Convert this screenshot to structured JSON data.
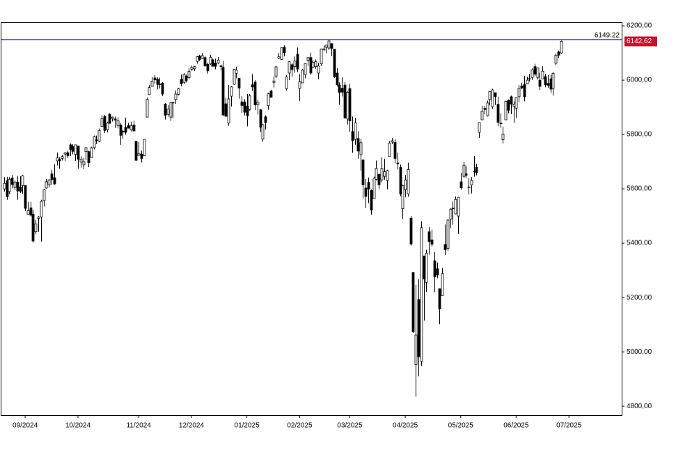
{
  "chart_data": {
    "type": "candlestick",
    "ohlc": [
      [
        5600,
        5643,
        5590,
        5620
      ],
      [
        5630,
        5644,
        5560,
        5571
      ],
      [
        5590,
        5643,
        5580,
        5635
      ],
      [
        5640,
        5651,
        5602,
        5616
      ],
      [
        5605,
        5631,
        5595,
        5625
      ],
      [
        5625,
        5646,
        5560,
        5592
      ],
      [
        5607,
        5646,
        5585,
        5591
      ],
      [
        5612,
        5651,
        5582,
        5648
      ],
      [
        5612,
        5613,
        5518,
        5528
      ],
      [
        5506,
        5552,
        5503,
        5520
      ],
      [
        5530,
        5552,
        5498,
        5503
      ],
      [
        5507,
        5522,
        5402,
        5408
      ],
      [
        5442,
        5485,
        5434,
        5471
      ],
      [
        5491,
        5500,
        5442,
        5496
      ],
      [
        5496,
        5560,
        5406,
        5554
      ],
      [
        5557,
        5600,
        5535,
        5596
      ],
      [
        5603,
        5636,
        5601,
        5626
      ],
      [
        5615,
        5636,
        5604,
        5633
      ],
      [
        5655,
        5670,
        5614,
        5634
      ],
      [
        5641,
        5690,
        5615,
        5618
      ],
      [
        5703,
        5733,
        5686,
        5714
      ],
      [
        5709,
        5716,
        5674,
        5703
      ],
      [
        5712,
        5725,
        5704,
        5719
      ],
      [
        5728,
        5735,
        5703,
        5732
      ],
      [
        5733,
        5741,
        5713,
        5722
      ],
      [
        5762,
        5767,
        5721,
        5745
      ],
      [
        5756,
        5764,
        5727,
        5738
      ],
      [
        5727,
        5763,
        5703,
        5762
      ],
      [
        5758,
        5758,
        5674,
        5709
      ],
      [
        5698,
        5720,
        5678,
        5709
      ],
      [
        5688,
        5714,
        5673,
        5700
      ],
      [
        5737,
        5754,
        5705,
        5751
      ],
      [
        5737,
        5740,
        5680,
        5696
      ],
      [
        5715,
        5755,
        5715,
        5751
      ],
      [
        5752,
        5796,
        5745,
        5792
      ],
      [
        5778,
        5796,
        5765,
        5780
      ],
      [
        5775,
        5822,
        5771,
        5815
      ],
      [
        5829,
        5871,
        5828,
        5859
      ],
      [
        5867,
        5872,
        5805,
        5815
      ],
      [
        5818,
        5847,
        5808,
        5842
      ],
      [
        5875,
        5878,
        5840,
        5841
      ],
      [
        5859,
        5866,
        5848,
        5864
      ],
      [
        5857,
        5866,
        5824,
        5853
      ],
      [
        5833,
        5863,
        5822,
        5851
      ],
      [
        5835,
        5842,
        5762,
        5797
      ],
      [
        5812,
        5817,
        5784,
        5809
      ],
      [
        5826,
        5862,
        5799,
        5808
      ],
      [
        5833,
        5843,
        5822,
        5823
      ],
      [
        5817,
        5847,
        5811,
        5832
      ],
      [
        5835,
        5851,
        5812,
        5813
      ],
      [
        5775,
        5776,
        5703,
        5705
      ],
      [
        5723,
        5772,
        5723,
        5729
      ],
      [
        5728,
        5741,
        5697,
        5712
      ],
      [
        5722,
        5783,
        5722,
        5782
      ],
      [
        5864,
        5936,
        5864,
        5929
      ],
      [
        5947,
        5983,
        5947,
        5973
      ],
      [
        5977,
        6012,
        5976,
        5996
      ],
      [
        6008,
        6018,
        5986,
        6001
      ],
      [
        6003,
        6010,
        5966,
        5984
      ],
      [
        5986,
        6009,
        5969,
        5985
      ],
      [
        5989,
        5993,
        5942,
        5949
      ],
      [
        5912,
        5916,
        5855,
        5871
      ],
      [
        5874,
        5908,
        5866,
        5894
      ],
      [
        5864,
        5919,
        5850,
        5917
      ],
      [
        5917,
        5920,
        5860,
        5918
      ],
      [
        5929,
        5962,
        5913,
        5949
      ],
      [
        5948,
        5972,
        5944,
        5969
      ],
      [
        6003,
        6021,
        5977,
        5987
      ],
      [
        5992,
        6026,
        5986,
        6021
      ],
      [
        6015,
        6021,
        5992,
        5999
      ],
      [
        6009,
        6044,
        6003,
        6032
      ],
      [
        6040,
        6053,
        6035,
        6047
      ],
      [
        6042,
        6052,
        6034,
        6050
      ],
      [
        6069,
        6089,
        6061,
        6086
      ],
      [
        6089,
        6093,
        6071,
        6075
      ],
      [
        6081,
        6100,
        6079,
        6090
      ],
      [
        6083,
        6088,
        6048,
        6053
      ],
      [
        6058,
        6065,
        6024,
        6034
      ],
      [
        6060,
        6093,
        6056,
        6084
      ],
      [
        6075,
        6079,
        6051,
        6051
      ],
      [
        6063,
        6079,
        6040,
        6051
      ],
      [
        6063,
        6085,
        6059,
        6074
      ],
      [
        6053,
        6057,
        6036,
        6050
      ],
      [
        6047,
        6071,
        5867,
        5872
      ],
      [
        5913,
        5936,
        5866,
        5867
      ],
      [
        5842,
        5982,
        5832,
        5931
      ],
      [
        5941,
        5978,
        5903,
        5975
      ],
      [
        5985,
        6041,
        5983,
        6040
      ],
      [
        6025,
        6050,
        6007,
        6037
      ],
      [
        6007,
        6007,
        5932,
        5971
      ],
      [
        5920,
        5941,
        5880,
        5907
      ],
      [
        5920,
        5930,
        5870,
        5882
      ],
      [
        5904,
        5949,
        5830,
        5869
      ],
      [
        5892,
        5949,
        5888,
        5942
      ],
      [
        5983,
        6022,
        5961,
        5975
      ],
      [
        5993,
        6000,
        5890,
        5909
      ],
      [
        5910,
        5928,
        5874,
        5919
      ],
      [
        5891,
        5894,
        5809,
        5827
      ],
      [
        5783,
        5838,
        5773,
        5836
      ],
      [
        5865,
        5871,
        5818,
        5843
      ],
      [
        5906,
        5953,
        5891,
        5950
      ],
      [
        5960,
        5965,
        5935,
        5937
      ],
      [
        5992,
        6014,
        5973,
        5997
      ],
      [
        6015,
        6052,
        6007,
        6049
      ],
      [
        6081,
        6100,
        6077,
        6086
      ],
      [
        6076,
        6119,
        6075,
        6119
      ],
      [
        6121,
        6128,
        6088,
        6101
      ],
      [
        5969,
        6018,
        5962,
        6012
      ],
      [
        6026,
        6070,
        6000,
        6068
      ],
      [
        6057,
        6063,
        6013,
        6039
      ],
      [
        6050,
        6087,
        6027,
        6071
      ],
      [
        6096,
        6120,
        6030,
        6041
      ],
      [
        5970,
        6022,
        5923,
        5994
      ],
      [
        5990,
        6042,
        5990,
        6037
      ],
      [
        6021,
        6062,
        6007,
        6061
      ],
      [
        6073,
        6084,
        6052,
        6083
      ],
      [
        6083,
        6101,
        6020,
        6026
      ],
      [
        6048,
        6073,
        6044,
        6066
      ],
      [
        6050,
        6076,
        6042,
        6068
      ],
      [
        6026,
        6063,
        6003,
        6052
      ],
      [
        6060,
        6116,
        6052,
        6115
      ],
      [
        6115,
        6127,
        6107,
        6115
      ],
      [
        6121,
        6129,
        6099,
        6129
      ],
      [
        6118,
        6147,
        6111,
        6144
      ],
      [
        6134,
        6136,
        6089,
        6117
      ],
      [
        6114,
        6115,
        6008,
        6013
      ],
      [
        6026,
        6044,
        5977,
        5983
      ],
      [
        5982,
        5992,
        5909,
        5955
      ],
      [
        5970,
        6010,
        5940,
        5956
      ],
      [
        5982,
        5993,
        5858,
        5861
      ],
      [
        5857,
        5960,
        5837,
        5955
      ],
      [
        5969,
        5986,
        5810,
        5850
      ],
      [
        5811,
        5866,
        5733,
        5778
      ],
      [
        5782,
        5861,
        5762,
        5843
      ],
      [
        5785,
        5812,
        5711,
        5739
      ],
      [
        5726,
        5784,
        5667,
        5770
      ],
      [
        5706,
        5710,
        5565,
        5615
      ],
      [
        5603,
        5636,
        5529,
        5572
      ],
      [
        5624,
        5642,
        5547,
        5599
      ],
      [
        5594,
        5598,
        5505,
        5522
      ],
      [
        5564,
        5645,
        5564,
        5639
      ],
      [
        5635,
        5704,
        5630,
        5675
      ],
      [
        5654,
        5655,
        5598,
        5615
      ],
      [
        5633,
        5716,
        5624,
        5675
      ],
      [
        5646,
        5711,
        5633,
        5663
      ],
      [
        5631,
        5670,
        5598,
        5667
      ],
      [
        5719,
        5776,
        5719,
        5768
      ],
      [
        5772,
        5787,
        5765,
        5777
      ],
      [
        5771,
        5782,
        5694,
        5712
      ],
      [
        5695,
        5733,
        5671,
        5693
      ],
      [
        5679,
        5689,
        5572,
        5581
      ],
      [
        5527,
        5615,
        5489,
        5612
      ],
      [
        5597,
        5651,
        5570,
        5633
      ],
      [
        5581,
        5696,
        5571,
        5671
      ],
      [
        5492,
        5500,
        5391,
        5397
      ],
      [
        5292,
        5293,
        5070,
        5074
      ],
      [
        4953,
        5247,
        4835,
        5062
      ],
      [
        5193,
        5267,
        4910,
        4982
      ],
      [
        4965,
        5481,
        4949,
        5457
      ],
      [
        5353,
        5353,
        5115,
        5268
      ],
      [
        5256,
        5376,
        5221,
        5363
      ],
      [
        5442,
        5460,
        5358,
        5406
      ],
      [
        5412,
        5450,
        5387,
        5396
      ],
      [
        5335,
        5367,
        5220,
        5276
      ],
      [
        5306,
        5329,
        5271,
        5283
      ],
      [
        5232,
        5233,
        5102,
        5158
      ],
      [
        5207,
        5309,
        5207,
        5288
      ],
      [
        5395,
        5469,
        5357,
        5376
      ],
      [
        5381,
        5489,
        5371,
        5485
      ],
      [
        5489,
        5528,
        5456,
        5525
      ],
      [
        5529,
        5553,
        5468,
        5529
      ],
      [
        5508,
        5572,
        5506,
        5561
      ],
      [
        5500,
        5570,
        5434,
        5569
      ],
      [
        5626,
        5659,
        5597,
        5604
      ],
      [
        5646,
        5700,
        5641,
        5687
      ],
      [
        5655,
        5684,
        5640,
        5650
      ],
      [
        5605,
        5639,
        5579,
        5607
      ],
      [
        5614,
        5643,
        5583,
        5631
      ],
      [
        5663,
        5721,
        5645,
        5664
      ],
      [
        5679,
        5692,
        5650,
        5660
      ],
      [
        5808,
        5845,
        5787,
        5844
      ],
      [
        5854,
        5906,
        5854,
        5886
      ],
      [
        5896,
        5906,
        5874,
        5892
      ],
      [
        5869,
        5925,
        5866,
        5916
      ],
      [
        5929,
        5959,
        5907,
        5958
      ],
      [
        5902,
        5968,
        5895,
        5964
      ],
      [
        5954,
        5954,
        5909,
        5940
      ],
      [
        5911,
        5939,
        5830,
        5845
      ],
      [
        5842,
        5878,
        5825,
        5842
      ],
      [
        5781,
        5829,
        5767,
        5802
      ],
      [
        5854,
        5924,
        5854,
        5922
      ],
      [
        5926,
        5929,
        5878,
        5889
      ],
      [
        5939,
        5943,
        5875,
        5912
      ],
      [
        5903,
        5922,
        5843,
        5912
      ],
      [
        5897,
        5937,
        5861,
        5936
      ],
      [
        5939,
        5982,
        5919,
        5970
      ],
      [
        5979,
        5991,
        5967,
        5971
      ],
      [
        5985,
        6016,
        5922,
        5939
      ],
      [
        5987,
        6013,
        5985,
        6000
      ],
      [
        6004,
        6022,
        5994,
        6006
      ],
      [
        6010,
        6043,
        6001,
        6038
      ],
      [
        6050,
        6060,
        6013,
        6022
      ],
      [
        6010,
        6046,
        6002,
        6045
      ],
      [
        6000,
        6027,
        5964,
        5977
      ],
      [
        6005,
        6051,
        6004,
        6033
      ],
      [
        6013,
        6023,
        5974,
        5983
      ],
      [
        5988,
        6018,
        5972,
        5981
      ],
      [
        6005,
        6019,
        5952,
        5967
      ],
      [
        5970,
        6030,
        5943,
        6025
      ],
      [
        6062,
        6098,
        6056,
        6092
      ],
      [
        6104,
        6109,
        6082,
        6092
      ],
      [
        6100,
        6146,
        6098,
        6142.62
      ]
    ],
    "xlim": [
      -1,
      234
    ],
    "xticks": [
      {
        "value": 8,
        "label": "09/2024"
      },
      {
        "value": 28,
        "label": "10/2024"
      },
      {
        "value": 51,
        "label": "11/2024"
      },
      {
        "value": 71,
        "label": "12/2024"
      },
      {
        "value": 92,
        "label": "01/2025"
      },
      {
        "value": 112,
        "label": "02/2025"
      },
      {
        "value": 131,
        "label": "03/2025"
      },
      {
        "value": 152,
        "label": "04/2025"
      },
      {
        "value": 173,
        "label": "05/2025"
      },
      {
        "value": 194,
        "label": "06/2025"
      },
      {
        "value": 214,
        "label": "07/2025"
      }
    ],
    "ylim": [
      4767,
      6213
    ],
    "yticks": [
      {
        "value": 4800,
        "label": "4800,00"
      },
      {
        "value": 5000,
        "label": "5000,00"
      },
      {
        "value": 5200,
        "label": "5200,00"
      },
      {
        "value": 5400,
        "label": "5400,00"
      },
      {
        "value": 5600,
        "label": "5600,00"
      },
      {
        "value": 5800,
        "label": "5800,00"
      },
      {
        "value": 6000,
        "label": "6000,00"
      },
      {
        "value": 6200,
        "label": "6200,00"
      }
    ],
    "reference_line": 6149.22,
    "last_price": {
      "value": 6142.62,
      "label": "6142,62"
    },
    "up_color": "#ffffff",
    "down_color": "#000000",
    "line_color": "#000080",
    "marker_color": "#c8102e"
  }
}
